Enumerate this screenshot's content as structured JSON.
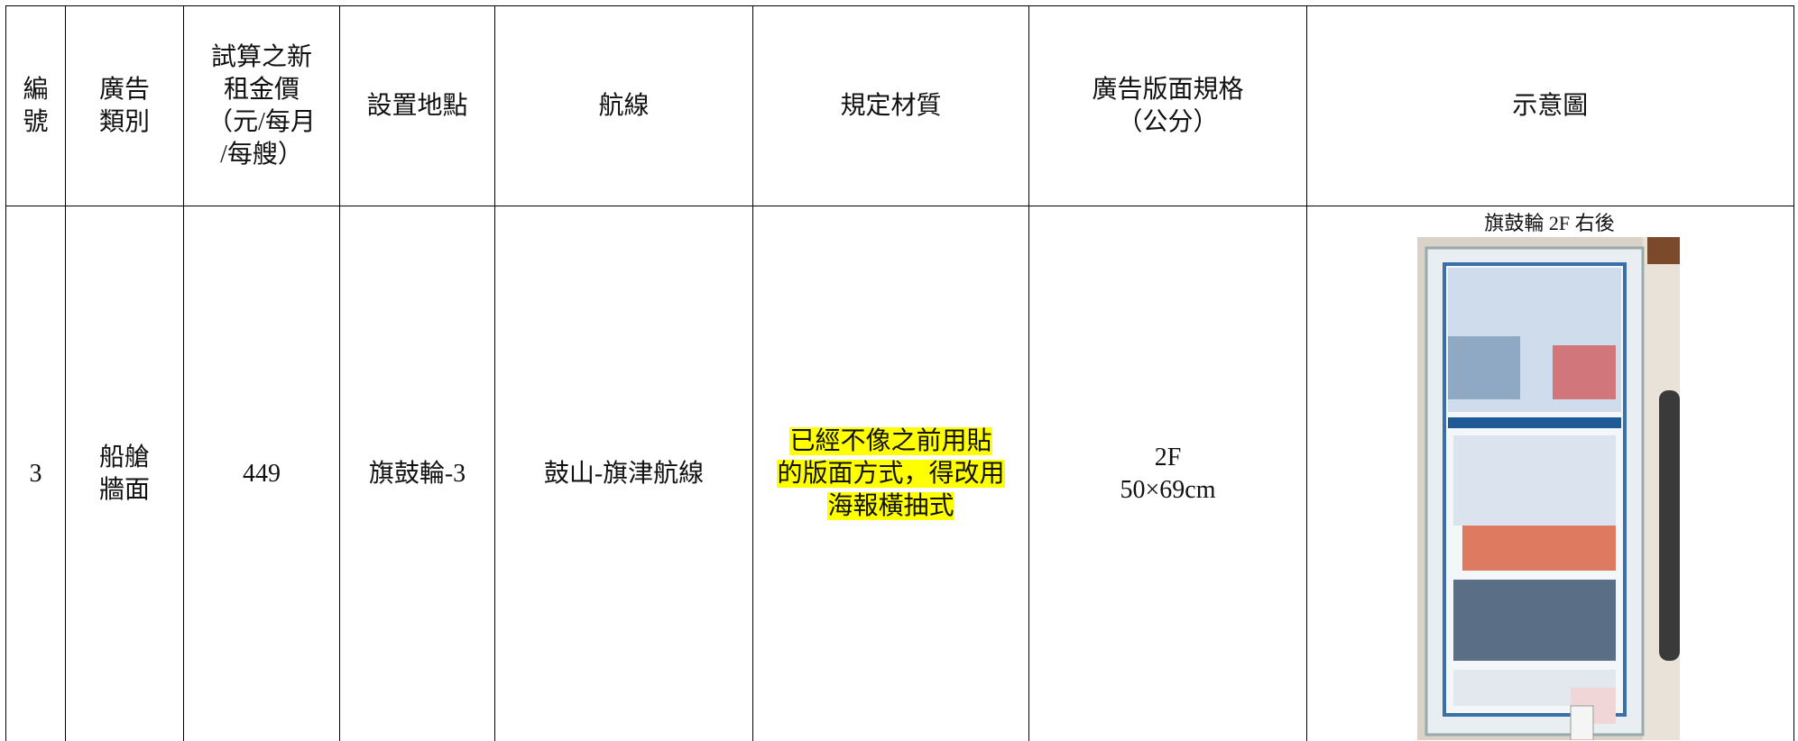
{
  "table": {
    "header": [
      [
        "編",
        "號"
      ],
      [
        "廣告",
        "類別"
      ],
      [
        "試算之新",
        "租金價",
        "（元/每月",
        "/每艘）"
      ],
      [
        "設置地點"
      ],
      [
        "航線"
      ],
      [
        "規定材質"
      ],
      [
        "廣告版面規格",
        "（公分）"
      ],
      [
        "示意圖"
      ]
    ],
    "rows": [
      [
        [
          "3"
        ],
        [
          "船艙",
          "牆面"
        ],
        [
          "449"
        ],
        [
          "旗鼓輪-3"
        ],
        [
          "鼓山-旗津航線"
        ],
        [
          "已經不像之前用貼",
          "的版面方式，得改用",
          "海報橫抽式"
        ],
        [
          "2F",
          "50×69cm"
        ]
      ]
    ],
    "image_caption": "旗鼓輪 2F 右後"
  }
}
